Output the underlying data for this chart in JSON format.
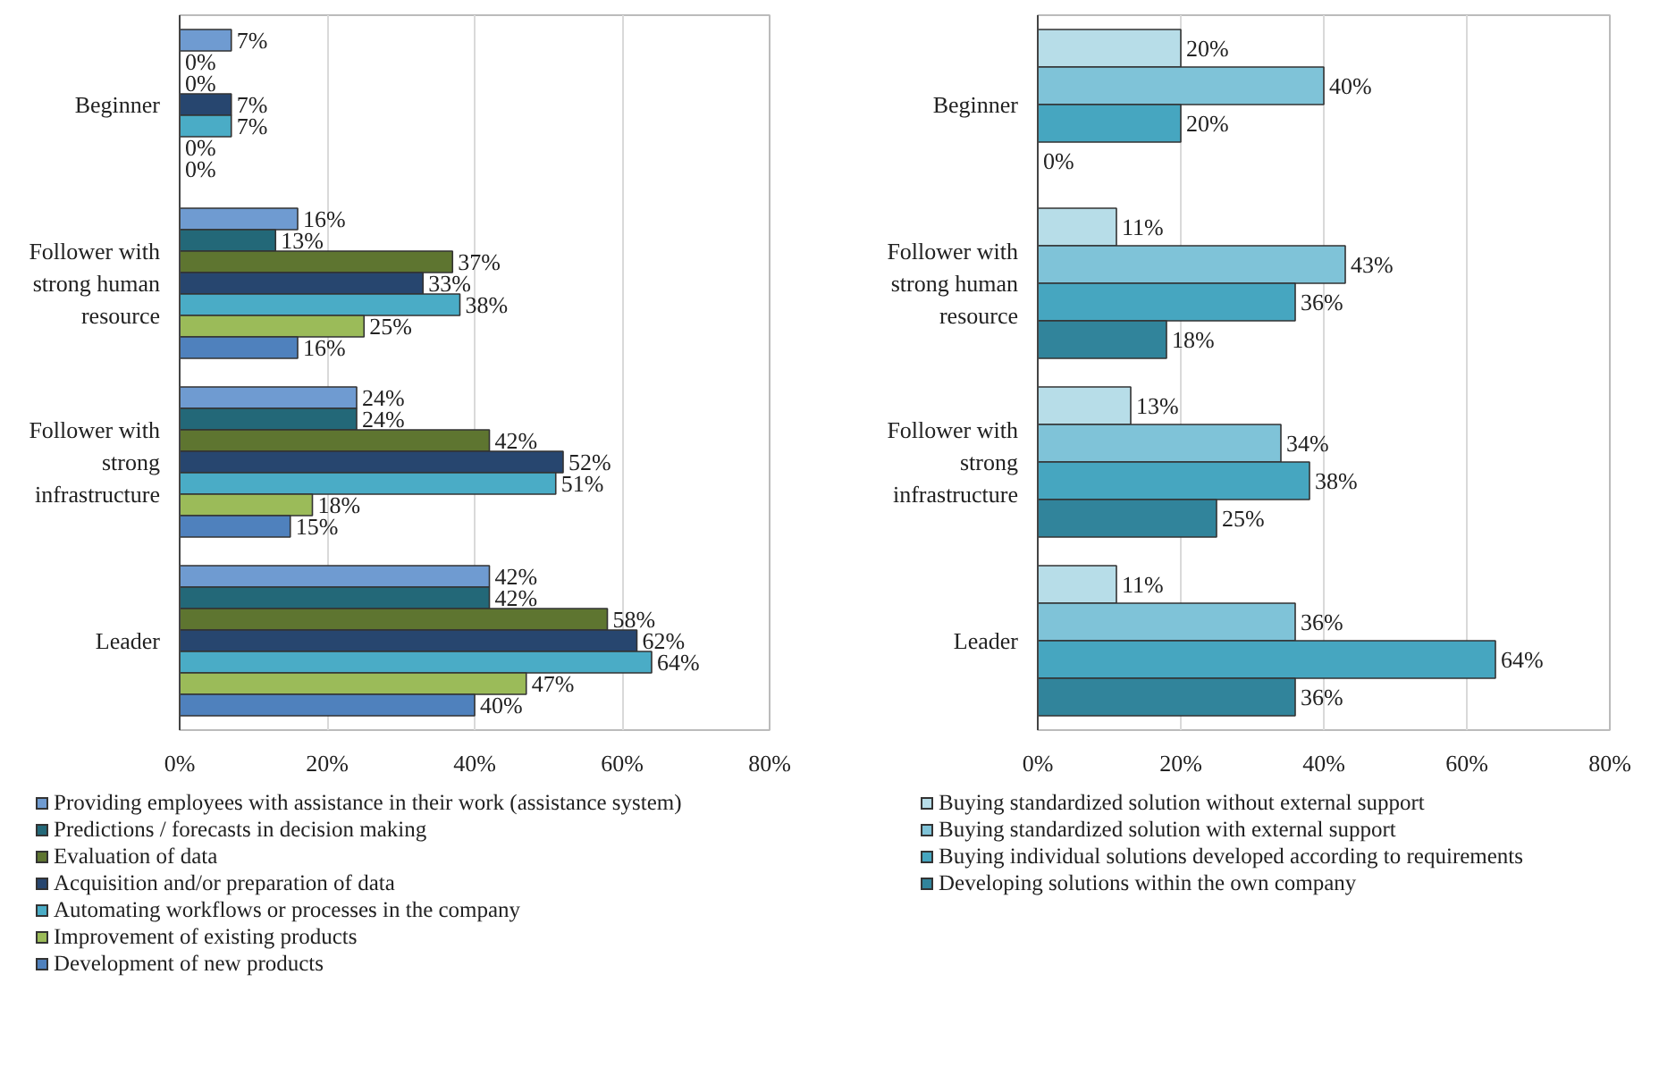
{
  "chart_data": [
    {
      "type": "bar",
      "orientation": "horizontal",
      "categories": [
        "Beginner",
        "Follower with strong human resource",
        "Follower with strong infrastructure",
        "Leader"
      ],
      "xlim": [
        0,
        80
      ],
      "xticks": [
        {
          "value": 0,
          "label": "0%"
        },
        {
          "value": 20,
          "label": "20%"
        },
        {
          "value": 40,
          "label": "40%"
        },
        {
          "value": 60,
          "label": "60%"
        },
        {
          "value": 80,
          "label": "80%"
        }
      ],
      "grid": "x",
      "legend": "bottom",
      "series": [
        {
          "name": "Providing employees with assistance in their work (assistance system)",
          "color": "#6f9bd1",
          "values": [
            7,
            16,
            24,
            42
          ],
          "value_labels": [
            "7%",
            "16%",
            "24%",
            "42%"
          ]
        },
        {
          "name": "Predictions / forecasts in decision making",
          "color": "#236878",
          "values": [
            0,
            13,
            24,
            42
          ],
          "value_labels": [
            "0%",
            "13%",
            "24%",
            "42%"
          ]
        },
        {
          "name": "Evaluation of data",
          "color": "#5e7530",
          "values": [
            0,
            37,
            42,
            58
          ],
          "value_labels": [
            "0%",
            "37%",
            "42%",
            "58%"
          ]
        },
        {
          "name": "Acquisition and/or preparation of data",
          "color": "#27466f",
          "values": [
            7,
            33,
            52,
            62
          ],
          "value_labels": [
            "7%",
            "33%",
            "52%",
            "62%"
          ]
        },
        {
          "name": "Automating workflows or processes in the company",
          "color": "#4aacc6",
          "values": [
            7,
            38,
            51,
            64
          ],
          "value_labels": [
            "7%",
            "38%",
            "51%",
            "64%"
          ]
        },
        {
          "name": "Improvement of existing products",
          "color": "#9bbb59",
          "values": [
            0,
            25,
            18,
            47
          ],
          "value_labels": [
            "0%",
            "25%",
            "18%",
            "47%"
          ]
        },
        {
          "name": "Development of new products",
          "color": "#4f81bd",
          "values": [
            0,
            16,
            15,
            40
          ],
          "value_labels": [
            "0%",
            "16%",
            "15%",
            "40%"
          ]
        }
      ]
    },
    {
      "type": "bar",
      "orientation": "horizontal",
      "categories": [
        "Beginner",
        "Follower with strong human resource",
        "Follower with strong infrastructure",
        "Leader"
      ],
      "xlim": [
        0,
        80
      ],
      "xticks": [
        {
          "value": 0,
          "label": "0%"
        },
        {
          "value": 20,
          "label": "20%"
        },
        {
          "value": 40,
          "label": "40%"
        },
        {
          "value": 60,
          "label": "60%"
        },
        {
          "value": 80,
          "label": "80%"
        }
      ],
      "grid": "x",
      "legend": "bottom",
      "series": [
        {
          "name": "Buying standardized solution without external support",
          "color": "#b7dde8",
          "values": [
            20,
            11,
            13,
            11
          ],
          "value_labels": [
            "20%",
            "11%",
            "13%",
            "11%"
          ]
        },
        {
          "name": "Buying standardized solution with external support",
          "color": "#7fc3d8",
          "values": [
            40,
            43,
            34,
            36
          ],
          "value_labels": [
            "40%",
            "43%",
            "34%",
            "36%"
          ]
        },
        {
          "name": "Buying individual solutions developed according to requirements",
          "color": "#46a6c0",
          "values": [
            20,
            36,
            38,
            64
          ],
          "value_labels": [
            "20%",
            "36%",
            "38%",
            "64%"
          ]
        },
        {
          "name": "Developing solutions within the own company",
          "color": "#31849b",
          "values": [
            0,
            18,
            25,
            36
          ],
          "value_labels": [
            "0%",
            "18%",
            "25%",
            "36%"
          ]
        }
      ]
    }
  ]
}
